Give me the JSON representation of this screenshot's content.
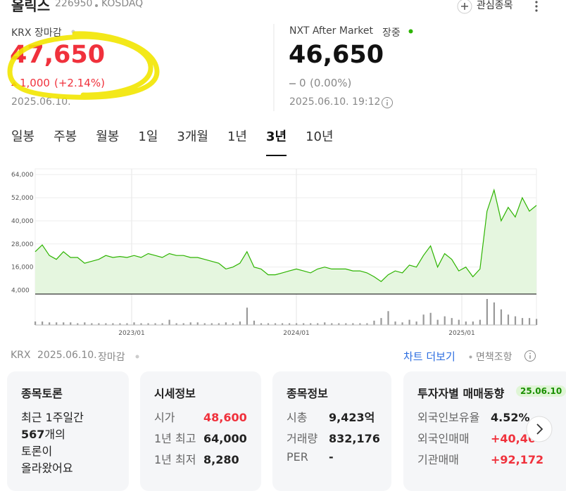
{
  "header": {
    "name": "올릭스",
    "code": "226950",
    "market": "KOSDAQ",
    "watch": "관심종목"
  },
  "krx": {
    "label": "KRX 장마감",
    "price": "47,650",
    "change": "1,000",
    "change_pct": "(+2.14%)",
    "date": "2025.06.10."
  },
  "nxt": {
    "label": "NXT After Market",
    "status": "장중",
    "price": "46,650",
    "change": "0",
    "change_pct": "(0.00%)",
    "datetime": "2025.06.10. 19:12"
  },
  "tabs": [
    "일봉",
    "주봉",
    "월봉",
    "1일",
    "3개월",
    "1년",
    "3년",
    "10년"
  ],
  "active_tab": 6,
  "chart": {
    "type": "area",
    "color": "#2db400",
    "ylim": [
      2000,
      67000
    ],
    "yticks": [
      {
        "value": 64000,
        "label": "64,000"
      },
      {
        "value": 52000,
        "label": "52,000"
      },
      {
        "value": 40000,
        "label": "40,000"
      },
      {
        "value": 28000,
        "label": "28,000"
      },
      {
        "value": 16000,
        "label": "16,000"
      },
      {
        "value": 4000,
        "label": "4,000"
      }
    ],
    "xticks": [
      "2023/01",
      "2024/01",
      "2025/01"
    ],
    "price_values": [
      24000,
      27500,
      22000,
      20000,
      24000,
      21000,
      21000,
      18000,
      19000,
      20000,
      22000,
      21000,
      21500,
      21000,
      22000,
      21000,
      23000,
      22000,
      21000,
      23000,
      22000,
      22000,
      21000,
      21000,
      20000,
      19000,
      18000,
      15000,
      16000,
      18000,
      24000,
      16000,
      15000,
      12000,
      12000,
      13000,
      14000,
      15000,
      14000,
      13000,
      15000,
      16000,
      15000,
      15000,
      15000,
      14000,
      14000,
      13000,
      11000,
      8500,
      12000,
      14000,
      13000,
      17000,
      16000,
      22000,
      27000,
      16000,
      23000,
      20000,
      14000,
      16000,
      11000,
      15000,
      45000,
      56000,
      40000,
      47000,
      42000,
      52000,
      45000,
      48000
    ],
    "volume_values": [
      2,
      2,
      1.5,
      1.5,
      1.5,
      1.5,
      1,
      1.5,
      1,
      1,
      1,
      1,
      1,
      1,
      1.5,
      1,
      1,
      1,
      1,
      3,
      1,
      1,
      1.5,
      1.5,
      1,
      1,
      1,
      1.5,
      1,
      2,
      10,
      2.5,
      1,
      1,
      1,
      1,
      1,
      1,
      1,
      1,
      1,
      1.5,
      1,
      1,
      1,
      1,
      1,
      1,
      2.5,
      4,
      8,
      2,
      1.5,
      3,
      2,
      6,
      7,
      3,
      5,
      4,
      3,
      2,
      2,
      3,
      15,
      13,
      9,
      6,
      5,
      4,
      4,
      3.5
    ]
  },
  "footer": {
    "source": "KRX",
    "date": "2025.06.10.",
    "status": "장마감",
    "more": "차트 더보기",
    "disclaimer": "면책조항"
  },
  "cards": {
    "discussion": {
      "title": "종목토론",
      "line1": "최근 1주일간",
      "count": "567",
      "line2": "개의",
      "line3": "토론이",
      "line4": "올라왔어요"
    },
    "quote": {
      "title": "시세정보",
      "rows": [
        [
          "시가",
          "48,600"
        ],
        [
          "1년 최고",
          "64,000"
        ],
        [
          "1년 최저",
          "8,280"
        ]
      ]
    },
    "info": {
      "title": "종목정보",
      "rows": [
        [
          "시총",
          "9,423억"
        ],
        [
          "거래량",
          "832,176"
        ],
        [
          "PER",
          "-"
        ]
      ]
    },
    "investor": {
      "title": "투자자별 매매동향",
      "date": "25.06.10",
      "rows": [
        [
          "외국인보유율",
          "4.52%"
        ],
        [
          "외국인매매",
          "+40,46"
        ],
        [
          "기관매매",
          "+92,172"
        ]
      ]
    }
  }
}
